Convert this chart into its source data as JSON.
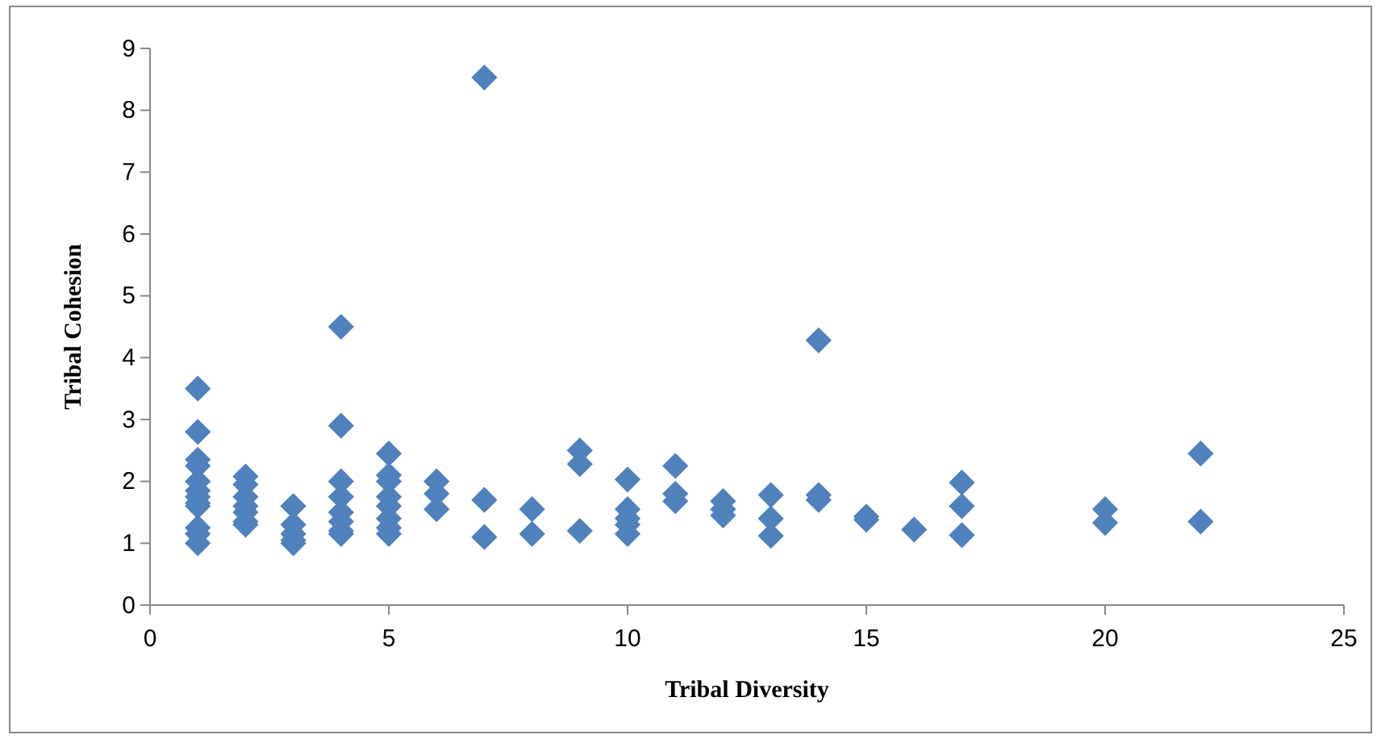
{
  "chart_data": {
    "type": "scatter",
    "xlabel": "Tribal Diversity",
    "ylabel": "Tribal Cohesion",
    "xlim": [
      0,
      25
    ],
    "xticks": [
      0,
      5,
      10,
      15,
      20,
      25
    ],
    "ylim": [
      0,
      9
    ],
    "yticks": [
      0,
      1,
      2,
      3,
      4,
      5,
      6,
      7,
      8,
      9
    ],
    "grid": false,
    "marker": "diamond",
    "series": [
      {
        "color": "#4f81bd",
        "x": [
          1,
          1,
          1,
          1,
          1,
          1,
          1,
          1,
          1,
          1,
          1,
          1,
          2,
          2,
          2,
          2,
          2,
          2,
          2,
          3,
          3,
          3,
          3,
          3,
          4,
          4,
          4,
          4,
          4,
          4,
          4,
          4,
          5,
          5,
          5,
          5,
          5,
          5,
          5,
          5,
          6,
          6,
          6,
          7,
          7,
          7,
          8,
          8,
          9,
          9,
          9,
          10,
          10,
          10,
          10,
          10,
          11,
          11,
          11,
          12,
          12,
          12,
          13,
          13,
          13,
          14,
          14,
          14,
          15,
          15,
          16,
          17,
          17,
          17,
          20,
          20,
          22,
          22
        ],
        "values": [
          3.5,
          2.8,
          2.35,
          2.25,
          2.0,
          1.85,
          1.75,
          1.65,
          1.6,
          1.25,
          1.15,
          1.0,
          2.08,
          1.95,
          1.75,
          1.6,
          1.5,
          1.35,
          1.3,
          1.6,
          1.3,
          1.15,
          1.05,
          1.0,
          4.5,
          2.9,
          2.0,
          1.75,
          1.5,
          1.35,
          1.2,
          1.15,
          2.45,
          2.1,
          2.0,
          1.75,
          1.6,
          1.4,
          1.25,
          1.15,
          2.0,
          1.8,
          1.55,
          8.53,
          1.7,
          1.1,
          1.55,
          1.15,
          2.5,
          2.28,
          1.2,
          2.03,
          1.55,
          1.4,
          1.3,
          1.15,
          2.25,
          1.8,
          1.68,
          1.68,
          1.55,
          1.45,
          1.78,
          1.4,
          1.12,
          4.28,
          1.78,
          1.7,
          1.43,
          1.38,
          1.22,
          1.98,
          1.6,
          1.13,
          1.55,
          1.33,
          2.45,
          1.35
        ]
      }
    ]
  }
}
